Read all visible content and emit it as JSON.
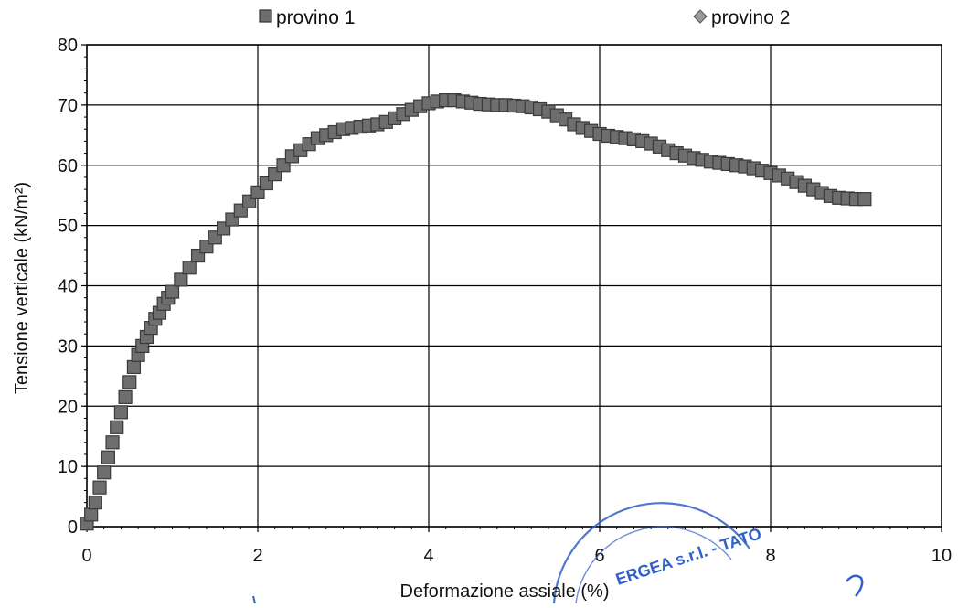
{
  "chart_data": {
    "type": "scatter",
    "xlabel": "Deformazione assiale (%)",
    "ylabel": "Tensione verticale (kN/m²)",
    "xlim": [
      0,
      10
    ],
    "ylim": [
      0,
      80
    ],
    "x_ticks": [
      0,
      2,
      4,
      6,
      8,
      10
    ],
    "y_ticks": [
      0,
      10,
      20,
      30,
      40,
      50,
      60,
      70,
      80
    ],
    "grid": true,
    "legend_placement": "top",
    "series": [
      {
        "name": "provino 1",
        "marker": "square",
        "color": "#6e6e6e",
        "x": [
          0.0,
          0.05,
          0.1,
          0.15,
          0.2,
          0.25,
          0.3,
          0.35,
          0.4,
          0.45,
          0.5,
          0.55,
          0.6,
          0.65,
          0.7,
          0.75,
          0.8,
          0.85,
          0.9,
          0.95,
          1.0,
          1.1,
          1.2,
          1.3,
          1.4,
          1.5,
          1.6,
          1.7,
          1.8,
          1.9,
          2.0,
          2.1,
          2.2,
          2.3,
          2.4,
          2.5,
          2.6,
          2.7,
          2.8,
          2.9,
          3.0,
          3.1,
          3.2,
          3.3,
          3.4,
          3.5,
          3.6,
          3.7,
          3.8,
          3.9,
          4.0,
          4.1,
          4.2,
          4.3,
          4.4,
          4.5,
          4.6,
          4.7,
          4.8,
          4.9,
          5.0,
          5.1,
          5.2,
          5.3,
          5.4,
          5.5,
          5.6,
          5.7,
          5.8,
          5.9,
          6.0,
          6.1,
          6.2,
          6.3,
          6.4,
          6.5,
          6.6,
          6.7,
          6.8,
          6.9,
          7.0,
          7.1,
          7.2,
          7.3,
          7.4,
          7.5,
          7.6,
          7.7,
          7.8,
          7.9,
          8.0,
          8.1,
          8.2,
          8.3,
          8.4,
          8.5,
          8.6,
          8.7,
          8.8,
          8.9,
          9.0,
          9.1
        ],
        "y": [
          0.5,
          2.0,
          4.0,
          6.5,
          9.0,
          11.5,
          14.0,
          16.5,
          19.0,
          21.5,
          24.0,
          26.5,
          28.5,
          30.0,
          31.5,
          33.0,
          34.5,
          35.5,
          37.0,
          38.0,
          39.0,
          41.0,
          43.0,
          45.0,
          46.5,
          48.0,
          49.5,
          51.0,
          52.5,
          54.0,
          55.5,
          57.0,
          58.5,
          60.0,
          61.5,
          62.5,
          63.5,
          64.5,
          65.0,
          65.5,
          66.0,
          66.2,
          66.4,
          66.6,
          66.8,
          67.2,
          67.8,
          68.5,
          69.2,
          69.8,
          70.3,
          70.6,
          70.8,
          70.8,
          70.6,
          70.4,
          70.2,
          70.1,
          70.0,
          70.0,
          69.9,
          69.8,
          69.6,
          69.3,
          68.9,
          68.3,
          67.6,
          66.8,
          66.2,
          65.7,
          65.2,
          64.9,
          64.7,
          64.5,
          64.3,
          64.0,
          63.6,
          63.1,
          62.5,
          62.0,
          61.6,
          61.2,
          60.9,
          60.6,
          60.4,
          60.2,
          60.0,
          59.8,
          59.5,
          59.1,
          58.7,
          58.3,
          57.8,
          57.2,
          56.6,
          56.0,
          55.4,
          54.9,
          54.6,
          54.5,
          54.4,
          54.4
        ]
      },
      {
        "name": "provino 2",
        "marker": "diamond",
        "color": "#9a9a9a",
        "x": [],
        "y": []
      }
    ]
  },
  "stamp": {
    "text": "ERGEA s.r.l. - TATO",
    "color": "#3060c8"
  }
}
